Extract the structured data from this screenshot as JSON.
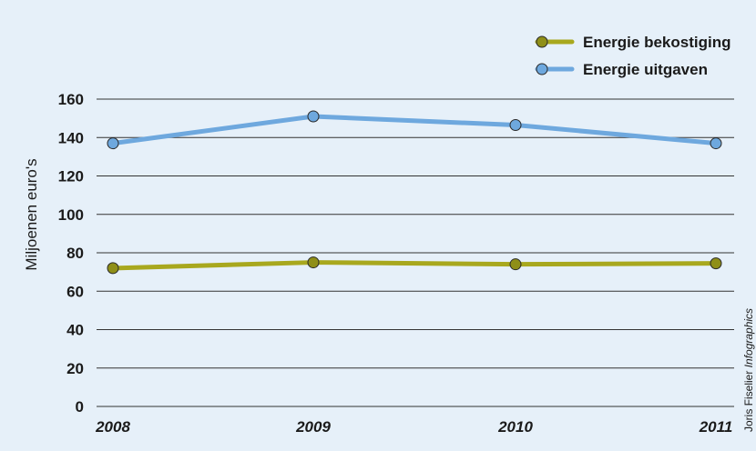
{
  "chart_data": {
    "type": "line",
    "categories": [
      "2008",
      "2009",
      "2010",
      "2011"
    ],
    "series": [
      {
        "name": "Energie bekostiging",
        "values": [
          72,
          75,
          74,
          74.5
        ],
        "color": "#a8a81e",
        "marker_fill": "#8f8f18"
      },
      {
        "name": "Energie uitgaven",
        "values": [
          137,
          151,
          146.5,
          137
        ],
        "color": "#6ea8de",
        "marker_fill": "#6ea8de"
      }
    ],
    "ylabel": "Miljoenen euro's",
    "ylim": [
      0,
      160
    ],
    "yticks": [
      "0",
      "20",
      "40",
      "60",
      "80",
      "100",
      "120",
      "140",
      "160"
    ],
    "grid": true,
    "legend_position": "top-right"
  },
  "credit": {
    "prefix": "Joris Fiselier ",
    "suffix": "Infographics"
  }
}
